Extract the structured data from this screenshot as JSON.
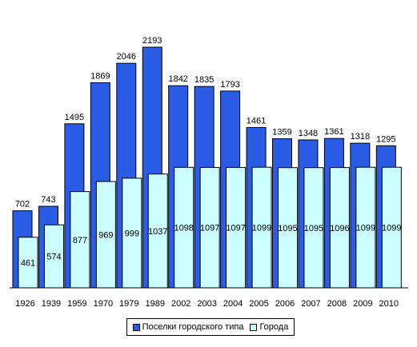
{
  "colors": {
    "series_a": "#2b5ce6",
    "series_b": "#ccffff",
    "outline": "#000000"
  },
  "chart_data": {
    "type": "bar",
    "categories": [
      "1926",
      "1939",
      "1959",
      "1970",
      "1979",
      "1989",
      "2002",
      "2003",
      "2004",
      "2005",
      "2006",
      "2007",
      "2008",
      "2009",
      "2010"
    ],
    "series": [
      {
        "name": "Поселки городского типа",
        "values": [
          702,
          743,
          1495,
          1869,
          2046,
          2193,
          1842,
          1835,
          1793,
          1461,
          1359,
          1348,
          1361,
          1318,
          1295
        ]
      },
      {
        "name": "Города",
        "values": [
          461,
          574,
          877,
          969,
          999,
          1037,
          1098,
          1097,
          1097,
          1099,
          1095,
          1095,
          1096,
          1099,
          1099
        ]
      }
    ],
    "ylim": [
      0,
      2193
    ],
    "grid": false,
    "legend": "bottom"
  }
}
